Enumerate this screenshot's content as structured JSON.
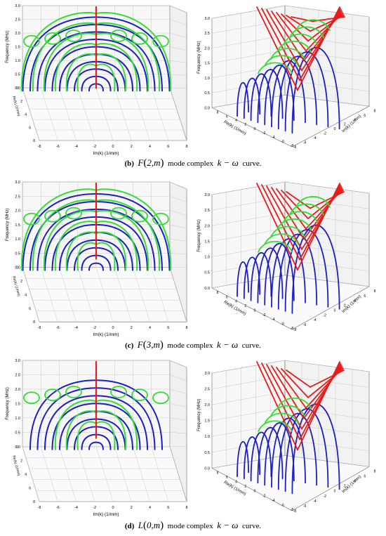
{
  "figures": [
    {
      "caption": {
        "label": "(b)",
        "mode_func": "F",
        "mode_args": "2,m",
        "mid": "mode complex",
        "k": "k",
        "dash": "−",
        "omega": "ω",
        "tail": "curve."
      },
      "left": {
        "ylabel": "Frequency (MHz)",
        "yticks": [
          "3.0",
          "2.5",
          "2.0",
          "1.5",
          "1.0",
          "0.5",
          "0.0"
        ],
        "xlabel": "Im(k) (1/mm)",
        "xticks": [
          "-8",
          "-6",
          "-4",
          "-2",
          "0",
          "2",
          "4",
          "6",
          "8"
        ],
        "depth_label": "Re(k) (1/mm)",
        "depth_ticks": [
          "0",
          "2",
          "4",
          "6",
          "8"
        ]
      },
      "right": {
        "ylabel": "Frequency (MHz)",
        "yticks": [
          "3.0",
          "2.5",
          "2.0",
          "1.5",
          "1.0",
          "0.5",
          "0.0"
        ],
        "xlabel": "Re(k) (1/mm)",
        "xticks": [
          "8",
          "6",
          "4",
          "2",
          "0",
          "-2",
          "-4",
          "-6",
          "-8"
        ],
        "zlabel": "Im(k) (1/mm)",
        "zticks": [
          "-8",
          "-6",
          "-4",
          "-2",
          "0",
          "2",
          "4",
          "6",
          "8"
        ]
      }
    },
    {
      "caption": {
        "label": "(c)",
        "mode_func": "F",
        "mode_args": "3,m",
        "mid": "mode complex",
        "k": "k",
        "dash": "−",
        "omega": "ω",
        "tail": "curve."
      },
      "left": {
        "ylabel": "Frequency (MHz)",
        "yticks": [
          "3.0",
          "2.5",
          "2.0",
          "1.5",
          "1.0",
          "0.5",
          "0.0"
        ],
        "xlabel": "Im(k) (1/mm)",
        "xticks": [
          "-8",
          "-6",
          "-4",
          "-2",
          "0",
          "2",
          "4",
          "6",
          "8"
        ],
        "depth_label": "Re(k) (1/mm)",
        "depth_ticks": [
          "0",
          "2",
          "4",
          "6",
          "8"
        ]
      },
      "right": {
        "ylabel": "Frequency (MHz)",
        "yticks": [
          "3.0",
          "2.5",
          "2.0",
          "1.5",
          "1.0",
          "0.5",
          "0.0"
        ],
        "xlabel": "Re(k) (1/mm)",
        "xticks": [
          "8",
          "6",
          "4",
          "2",
          "0",
          "-2",
          "-4",
          "-6",
          "-8"
        ],
        "zlabel": "Im(k) (1/mm)",
        "zticks": [
          "-8",
          "-6",
          "-4",
          "-2",
          "0",
          "2",
          "4",
          "6",
          "8"
        ]
      }
    },
    {
      "caption": {
        "label": "(d)",
        "mode_func": "L",
        "mode_args": "0,m",
        "mid": "mode complex",
        "k": "k",
        "dash": "−",
        "omega": "ω",
        "tail": "curve."
      },
      "left": {
        "ylabel": "Frequency (MHz)",
        "yticks": [
          "3.0",
          "2.5",
          "2.0",
          "1.5",
          "1.0",
          "0.5",
          "0.0"
        ],
        "xlabel": "Im(k) (1/mm)",
        "xticks": [
          "-8",
          "-6",
          "-4",
          "-2",
          "0",
          "2",
          "4",
          "6",
          "8"
        ],
        "depth_label": "Re(k) (1/mm)",
        "depth_ticks": [
          "0",
          "2",
          "4",
          "6",
          "8"
        ]
      },
      "right": {
        "ylabel": "Frequency (MHz)",
        "yticks": [
          "3.0",
          "2.5",
          "2.0",
          "1.5",
          "1.0",
          "0.5",
          "0.0"
        ],
        "xlabel": "Re(k) (1/mm)",
        "xticks": [
          "8",
          "6",
          "4",
          "2",
          "0",
          "-2",
          "-4",
          "-6",
          "-8"
        ],
        "zlabel": "Im(k) (1/mm)",
        "zticks": [
          "-8",
          "-6",
          "-4",
          "-2",
          "0",
          "2",
          "4",
          "6",
          "8"
        ]
      }
    }
  ],
  "colors": {
    "real": "#e81b1b",
    "imaginary": "#1c1cc8",
    "complex": "#33dd33",
    "grid": "#c8c8c8",
    "axis": "#666666"
  }
}
